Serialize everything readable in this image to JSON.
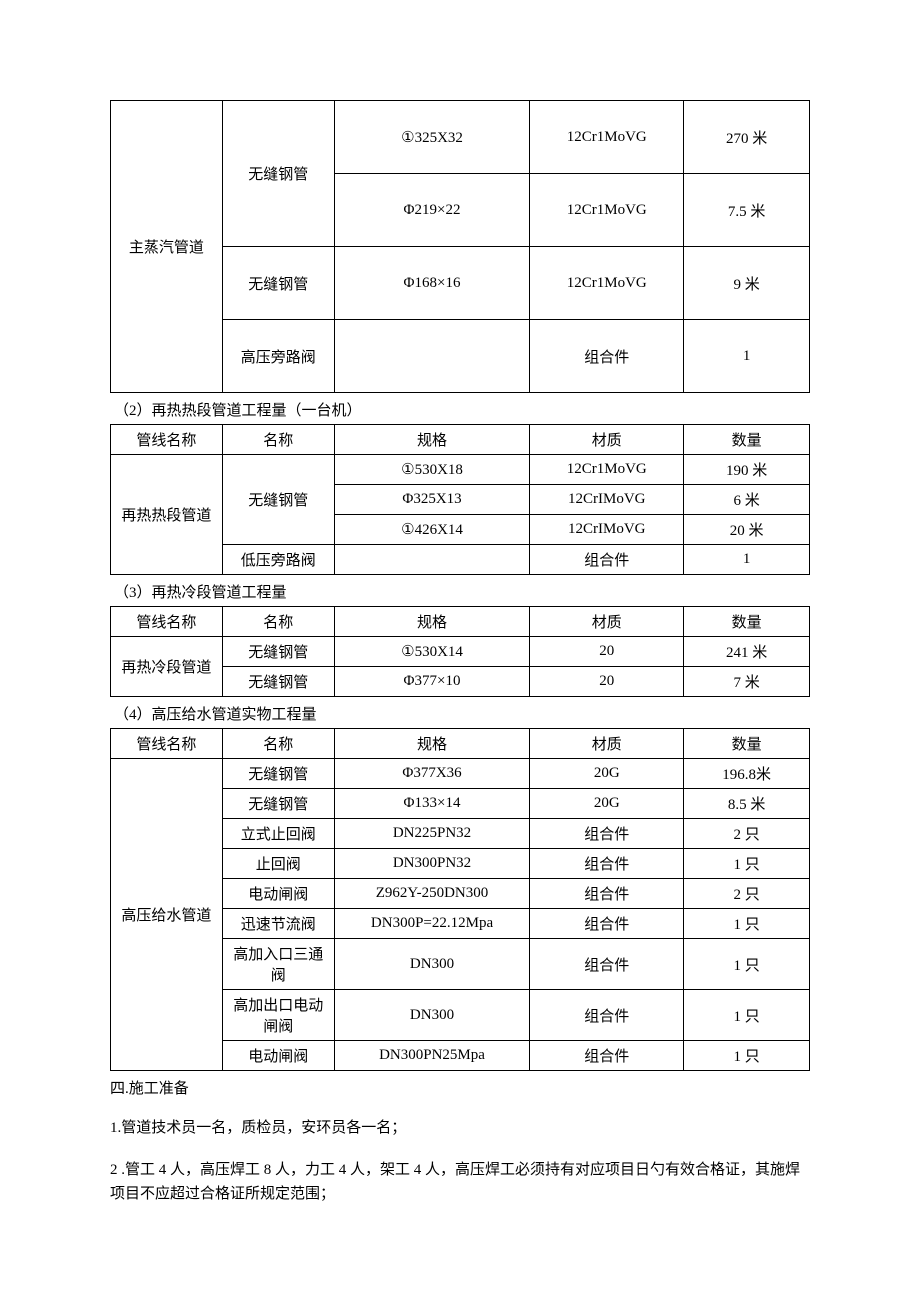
{
  "headers": {
    "pipe": "管线名称",
    "name": "名称",
    "spec": "规格",
    "material": "材质",
    "qty": "数量"
  },
  "t1": {
    "pipe": "主蒸汽管道",
    "rows": [
      {
        "name": "无缝钢管",
        "name_rowspan": 2,
        "spec": "①325X32",
        "material": "12Cr1MoVG",
        "qty": "270 米"
      },
      {
        "spec": "Φ219×22",
        "material": "12Cr1MoVG",
        "qty": "7.5 米"
      },
      {
        "name": "无缝钢管",
        "spec": "Φ168×16",
        "material": "12Cr1MoVG",
        "qty": "9 米"
      },
      {
        "name": "高压旁路阀",
        "spec": "",
        "material": "组合件",
        "qty": "1"
      }
    ]
  },
  "t2": {
    "caption": "（2）再热热段管道工程量（一台机）",
    "pipe": "再热热段管道",
    "rows": [
      {
        "name": "无缝钢管",
        "name_rowspan": 3,
        "spec": "①530X18",
        "material": "12Cr1MoVG",
        "qty": "190 米"
      },
      {
        "spec": "Φ325X13",
        "material": "12CrIMoVG",
        "qty": "6 米"
      },
      {
        "spec": "①426X14",
        "material": "12CrIMoVG",
        "qty": "20 米"
      },
      {
        "name": "低压旁路阀",
        "spec": "",
        "material": "组合件",
        "qty": "1"
      }
    ]
  },
  "t3": {
    "caption": "（3）再热冷段管道工程量",
    "pipe": "再热冷段管道",
    "rows": [
      {
        "name": "无缝钢管",
        "spec": "①530X14",
        "material": "20",
        "qty": "241 米"
      },
      {
        "name": "无缝钢管",
        "spec": "Φ377×10",
        "material": "20",
        "qty": "7 米"
      }
    ]
  },
  "t4": {
    "caption": "（4）高压给水管道实物工程量",
    "pipe": "高压给水管道",
    "rows": [
      {
        "name": "无缝钢管",
        "spec": "Φ377X36",
        "material": "20G",
        "qty": "196.8米"
      },
      {
        "name": "无缝钢管",
        "spec": "Φ133×14",
        "material": "20G",
        "qty": "8.5 米"
      },
      {
        "name": "立式止回阀",
        "spec": "DN225PN32",
        "material": "组合件",
        "qty": "2 只"
      },
      {
        "name": "止回阀",
        "spec": "DN300PN32",
        "material": "组合件",
        "qty": "1 只"
      },
      {
        "name": "电动闸阀",
        "spec": "Z962Y-250DN300",
        "material": "组合件",
        "qty": "2 只"
      },
      {
        "name": "迅速节流阀",
        "spec": "DN300P=22.12Mpa",
        "material": "组合件",
        "qty": "1 只"
      },
      {
        "name": "高加入口三通阀",
        "spec": "DN300",
        "material": "组合件",
        "qty": "1 只"
      },
      {
        "name": "高加出口电动闸阀",
        "spec": "DN300",
        "material": "组合件",
        "qty": "1 只"
      },
      {
        "name": "电动闸阀",
        "spec": "DN300PN25Mpa",
        "material": "组合件",
        "qty": "1 只"
      }
    ]
  },
  "section4": {
    "title": "四.施工准备",
    "p1": "1.管道技术员一名，质检员，安环员各一名；",
    "p2": "2 .管工 4 人，高压焊工 8 人，力工 4 人，架工 4 人，高压焊工必须持有对应项目日勺有效合格证，其施焊项目不应超过合格证所规定范围；"
  }
}
